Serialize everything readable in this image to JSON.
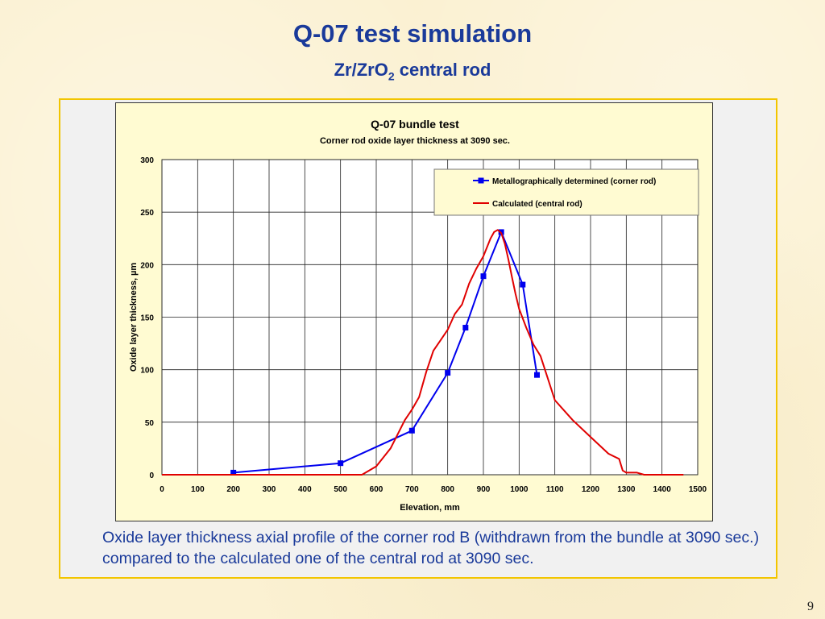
{
  "slide": {
    "title": "Q-07 test simulation",
    "subtitle_main": "Zr/ZrO",
    "subtitle_sub": "2",
    "subtitle_tail": " central rod",
    "caption": "Oxide layer thickness axial profile of the corner rod B (withdrawn from the bundle at 3090 sec.) compared to the calculated one of the central rod at 3090 sec.",
    "page_number": "9"
  },
  "chart_data": {
    "type": "line",
    "title": "Q-07 bundle test",
    "subtitle": "Corner rod oxide layer thickness at 3090 sec.",
    "xlabel": "Elevation, mm",
    "ylabel": "Oxide layer thickness, µm",
    "xlim": [
      0,
      1500
    ],
    "ylim": [
      0,
      300
    ],
    "xticks": [
      "0",
      "100",
      "200",
      "300",
      "400",
      "500",
      "600",
      "700",
      "800",
      "900",
      "1000",
      "1100",
      "1200",
      "1300",
      "1400",
      "1500"
    ],
    "yticks": [
      "0",
      "50",
      "100",
      "150",
      "200",
      "250",
      "300"
    ],
    "grid": true,
    "legend_position": "top-right",
    "series": [
      {
        "name": "Metallographically determined (corner rod)",
        "color": "#0000ee",
        "marker": "square",
        "x": [
          200,
          500,
          700,
          800,
          850,
          900,
          950,
          1010,
          1050
        ],
        "y": [
          2,
          11,
          42,
          97,
          140,
          189,
          231,
          181,
          95
        ]
      },
      {
        "name": "Calculated (central rod)",
        "color": "#e00000",
        "marker": "none",
        "x": [
          0,
          500,
          560,
          600,
          640,
          680,
          700,
          720,
          740,
          760,
          780,
          800,
          820,
          840,
          860,
          880,
          900,
          920,
          930,
          940,
          950,
          960,
          970,
          980,
          990,
          1000,
          1020,
          1040,
          1060,
          1080,
          1100,
          1150,
          1200,
          1250,
          1280,
          1290,
          1300,
          1330,
          1350,
          1460
        ],
        "y": [
          0,
          0,
          0,
          8,
          25,
          52,
          62,
          74,
          98,
          118,
          128,
          138,
          153,
          162,
          182,
          196,
          208,
          225,
          231,
          233,
          230,
          220,
          205,
          188,
          172,
          158,
          140,
          124,
          113,
          92,
          71,
          52,
          36,
          20,
          15,
          4,
          2,
          2,
          0,
          0
        ]
      }
    ]
  }
}
